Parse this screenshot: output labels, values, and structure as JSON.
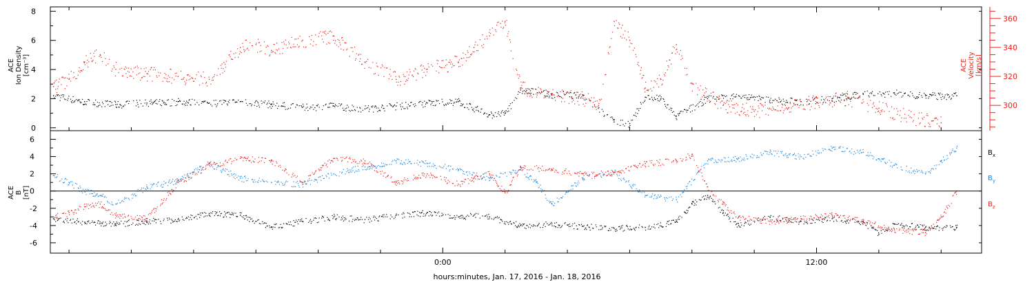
{
  "xaxis": {
    "label": "hours:minutes, Jan. 17, 2016 - Jan. 18, 2016",
    "range_hours": [
      -12.6,
      17.3
    ],
    "major_ticks": [
      {
        "h": 0,
        "label": "0:00"
      },
      {
        "h": 12,
        "label": "12:00"
      }
    ],
    "minor_tick_step_hours": 2
  },
  "panels": {
    "top": {
      "left_label": [
        "ACE",
        "Ion Density",
        "[cm⁻³]"
      ],
      "right_label": [
        "ACE",
        "Velocity",
        "[km/s]"
      ]
    },
    "bottom": {
      "left_label": [
        "ACE",
        "B",
        "[nT]"
      ]
    }
  },
  "colors": {
    "black": "#000000",
    "red": "#e8221b",
    "blue": "#1b86e0",
    "axis": "#000000"
  },
  "chart_data": [
    {
      "type": "scatter",
      "panel": "top",
      "ylim_left": [
        -0.2,
        8.3
      ],
      "yticks_left": [
        0,
        2,
        4,
        6,
        8
      ],
      "ylim_right": [
        282.5,
        368
      ],
      "yticks_right": [
        300,
        320,
        340,
        360
      ],
      "series": [
        {
          "axis": "left",
          "color": "black",
          "x": [
            -12.5,
            -11.5,
            -10.5,
            -9.5,
            -8.5,
            -7.5,
            -6.5,
            -5.5,
            -4.5,
            -3.5,
            -2.5,
            -1.5,
            -0.5,
            0.5,
            1.5,
            2.0,
            2.5,
            3.5,
            4.5,
            5.5,
            6.0,
            6.5,
            7.0,
            7.5,
            8.5,
            9.5,
            10.5,
            11.5,
            12.5,
            13.5,
            14.5,
            15.5,
            16.5
          ],
          "y": [
            2.2,
            1.8,
            1.6,
            1.7,
            1.8,
            1.7,
            1.8,
            1.6,
            1.4,
            1.5,
            1.3,
            1.5,
            1.7,
            1.8,
            0.9,
            1.0,
            2.6,
            2.3,
            2.2,
            0.4,
            0.3,
            2.1,
            2.0,
            0.8,
            2.0,
            2.2,
            1.9,
            1.8,
            2.0,
            2.3,
            2.4,
            2.2,
            2.2
          ]
        },
        {
          "axis": "right",
          "color": "red",
          "x": [
            -12.5,
            -12.0,
            -11.5,
            -11.0,
            -10.5,
            -9.5,
            -8.5,
            -7.5,
            -6.5,
            -6.0,
            -5.5,
            -4.5,
            -3.5,
            -2.5,
            -1.5,
            -0.5,
            0.5,
            1.0,
            1.5,
            2.0,
            2.5,
            3.5,
            4.5,
            5.0,
            5.5,
            6.0,
            6.5,
            7.0,
            7.5,
            8.0,
            9.0,
            10.0,
            11.0,
            12.0,
            13.0,
            14.0,
            15.0,
            16.0
          ],
          "y": [
            313,
            318,
            330,
            335,
            325,
            322,
            320,
            318,
            340,
            342,
            338,
            345,
            348,
            330,
            318,
            325,
            330,
            340,
            348,
            358,
            312,
            308,
            305,
            300,
            358,
            345,
            312,
            318,
            342,
            315,
            300,
            296,
            300,
            302,
            305,
            298,
            292,
            288
          ]
        }
      ]
    },
    {
      "type": "scatter",
      "panel": "bottom",
      "ylim": [
        -7.2,
        7.0
      ],
      "yticks": [
        -6,
        -4,
        -2,
        0,
        2,
        4,
        6
      ],
      "legend": [
        "B_x",
        "B_y",
        "B_z"
      ],
      "legend_placement": "right",
      "series": [
        {
          "name": "B_x",
          "color": "black",
          "x": [
            -12.5,
            -11.5,
            -10.5,
            -9.5,
            -8.5,
            -7.5,
            -6.5,
            -5.5,
            -4.5,
            -3.5,
            -2.5,
            -1.5,
            -0.5,
            0.5,
            1.0,
            1.5,
            2.5,
            3.5,
            4.5,
            5.5,
            6.5,
            7.5,
            8.0,
            8.5,
            9.0,
            9.5,
            10.5,
            11.5,
            12.5,
            13.5,
            14.0,
            14.5,
            15.5,
            16.5
          ],
          "y": [
            -3.2,
            -3.6,
            -3.8,
            -3.5,
            -3.3,
            -2.6,
            -2.8,
            -4.2,
            -3.5,
            -3.0,
            -3.3,
            -2.8,
            -2.5,
            -3.0,
            -2.8,
            -3.0,
            -4.0,
            -3.8,
            -4.1,
            -4.3,
            -4.2,
            -3.5,
            -1.5,
            -0.5,
            -2.5,
            -4.0,
            -3.0,
            -3.5,
            -3.2,
            -3.6,
            -5.0,
            -3.8,
            -4.2,
            -4.2
          ]
        },
        {
          "name": "B_y",
          "color": "blue",
          "x": [
            -12.5,
            -12.0,
            -11.5,
            -11.0,
            -10.5,
            -9.5,
            -8.5,
            -7.5,
            -6.5,
            -5.5,
            -4.5,
            -3.5,
            -2.5,
            -1.5,
            -0.5,
            0.5,
            1.5,
            2.5,
            3.0,
            3.5,
            4.5,
            5.5,
            6.5,
            7.5,
            8.5,
            9.5,
            10.5,
            11.5,
            12.5,
            13.5,
            14.5,
            15.5,
            16.0,
            16.5
          ],
          "y": [
            1.8,
            1.0,
            0.0,
            -0.5,
            -1.5,
            0.5,
            1.2,
            3.2,
            1.5,
            1.0,
            0.8,
            2.0,
            2.8,
            3.5,
            3.2,
            2.5,
            1.5,
            2.5,
            1.0,
            -1.5,
            1.5,
            2.2,
            -0.5,
            -1.0,
            3.5,
            3.8,
            4.5,
            4.0,
            5.0,
            4.5,
            3.0,
            2.0,
            3.5,
            5.0
          ]
        },
        {
          "name": "B_z",
          "color": "red",
          "x": [
            -12.5,
            -12.0,
            -11.5,
            -11.0,
            -10.5,
            -9.5,
            -8.5,
            -7.5,
            -6.5,
            -5.5,
            -4.5,
            -3.5,
            -2.5,
            -1.5,
            -0.5,
            0.5,
            1.0,
            1.5,
            2.0,
            2.5,
            3.5,
            4.5,
            5.5,
            6.5,
            7.5,
            8.0,
            8.5,
            9.0,
            9.5,
            10.5,
            11.5,
            12.5,
            13.5,
            14.5,
            15.5,
            16.0,
            16.5
          ],
          "y": [
            -3.0,
            -2.5,
            -1.8,
            -1.5,
            -2.8,
            -3.2,
            1.0,
            3.0,
            3.8,
            3.5,
            1.0,
            3.8,
            3.5,
            1.0,
            2.0,
            0.8,
            1.5,
            2.0,
            -0.2,
            2.8,
            2.5,
            2.0,
            2.2,
            3.2,
            3.5,
            4.2,
            0.5,
            -1.5,
            -3.0,
            -3.5,
            -3.2,
            -2.8,
            -3.5,
            -4.5,
            -4.8,
            -3.0,
            0.0
          ]
        }
      ]
    }
  ]
}
